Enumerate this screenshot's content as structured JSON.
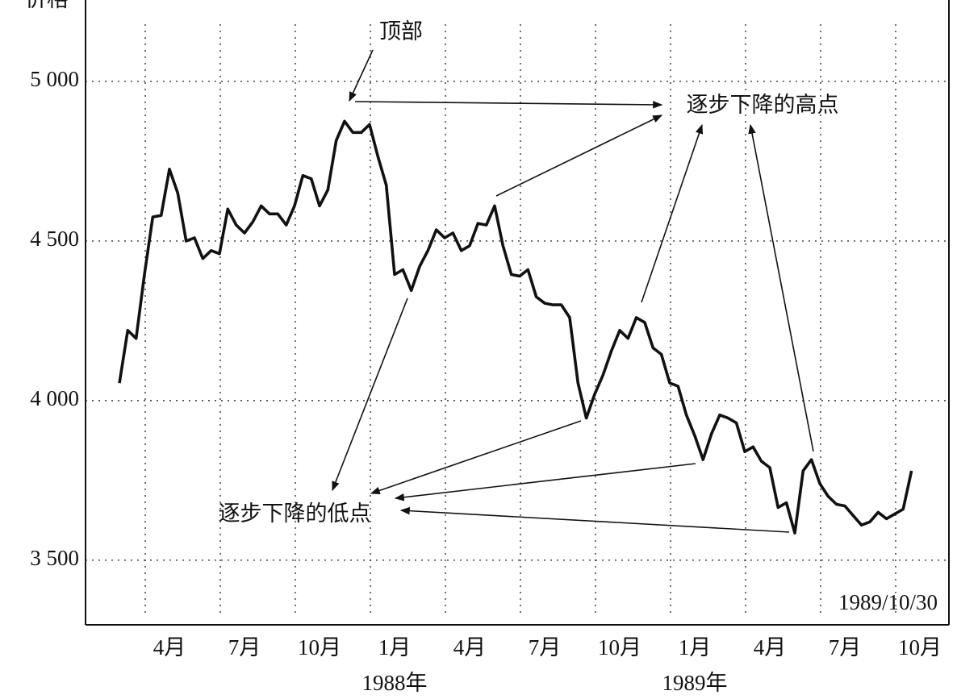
{
  "chart_data": {
    "type": "line",
    "y_label": "价格",
    "categories": [
      "",
      "",
      "",
      "",
      "",
      "",
      "4月",
      "",
      "",
      "",
      "",
      "",
      "",
      "",
      "",
      "7月",
      "",
      "",
      "",
      "",
      "",
      "",
      "",
      "",
      "10月",
      "",
      "",
      "",
      "",
      "",
      "",
      "",
      "",
      "1月",
      "",
      "",
      "",
      "",
      "",
      "",
      "",
      "",
      "4月",
      "",
      "",
      "",
      "",
      "",
      "",
      "",
      "",
      "7月",
      "",
      "",
      "",
      "",
      "",
      "",
      "",
      "",
      "10月",
      "",
      "",
      "",
      "",
      "",
      "",
      "",
      "",
      "1月",
      "",
      "",
      "",
      "",
      "",
      "",
      "",
      "",
      "4月",
      "",
      "",
      "",
      "",
      "",
      "",
      "",
      "",
      "7月",
      "",
      "",
      "",
      "",
      "",
      "",
      "",
      "",
      "10月"
    ],
    "years": [
      null,
      null,
      null,
      null,
      null,
      null,
      null,
      null,
      null,
      null,
      null,
      null,
      null,
      null,
      null,
      null,
      null,
      null,
      null,
      null,
      null,
      null,
      null,
      null,
      null,
      null,
      null,
      null,
      null,
      null,
      null,
      null,
      null,
      "1988年",
      null,
      null,
      null,
      null,
      null,
      null,
      null,
      null,
      null,
      null,
      null,
      null,
      null,
      null,
      null,
      null,
      null,
      null,
      null,
      null,
      null,
      null,
      null,
      null,
      null,
      null,
      null,
      null,
      null,
      null,
      null,
      null,
      null,
      null,
      null,
      "1989年",
      null,
      null,
      null,
      null,
      null,
      null,
      null,
      null,
      null,
      null,
      null,
      null,
      null,
      null,
      null,
      null,
      null,
      null,
      null,
      null,
      null,
      null,
      null,
      null,
      null,
      null,
      null
    ],
    "values": [
      4055,
      4220,
      4195,
      4395,
      4575,
      4580,
      4725,
      4650,
      4500,
      4510,
      4445,
      4470,
      4460,
      4600,
      4550,
      4525,
      4560,
      4610,
      4585,
      4585,
      4550,
      4610,
      4705,
      4695,
      4610,
      4660,
      4815,
      4875,
      4840,
      4840,
      4865,
      4765,
      4675,
      4395,
      4410,
      4345,
      4420,
      4470,
      4535,
      4510,
      4525,
      4470,
      4485,
      4555,
      4550,
      4610,
      4485,
      4395,
      4390,
      4410,
      4325,
      4305,
      4300,
      4300,
      4260,
      4055,
      3945,
      4020,
      4080,
      4155,
      4220,
      4195,
      4260,
      4245,
      4165,
      4145,
      4055,
      4045,
      3955,
      3890,
      3815,
      3895,
      3955,
      3945,
      3930,
      3840,
      3855,
      3810,
      3790,
      3665,
      3680,
      3585,
      3780,
      3815,
      3740,
      3700,
      3675,
      3670,
      3640,
      3610,
      3620,
      3650,
      3630,
      3645,
      3660,
      3780,
      null
    ],
    "color": "#111111",
    "ylim": [
      3300,
      5255
    ],
    "yticks": [
      {
        "value": 3500,
        "label": "3 500"
      },
      {
        "value": 4000,
        "label": "4 000"
      },
      {
        "value": 4500,
        "label": "4 500"
      },
      {
        "value": 5000,
        "label": "5 000"
      }
    ],
    "grid": true,
    "annotations": [
      "顶部",
      "逐步下降的高点",
      "逐步下降的低点",
      "1989/10/30"
    ]
  }
}
